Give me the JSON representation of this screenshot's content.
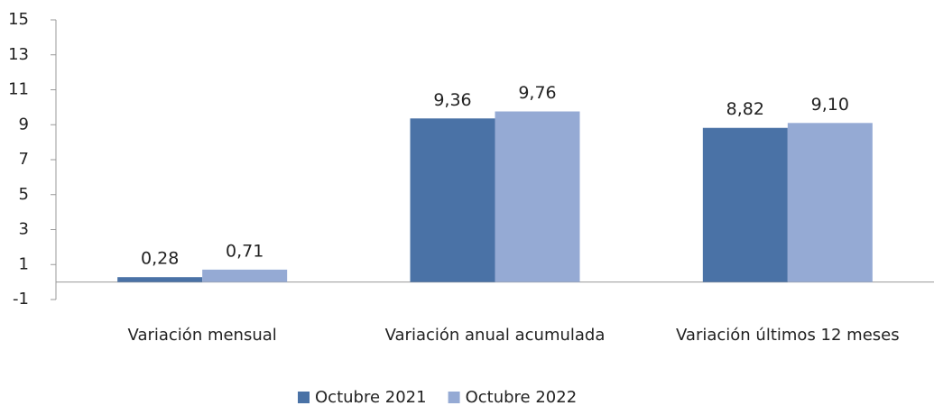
{
  "chart_data": {
    "type": "bar",
    "categories": [
      "Variación mensual",
      "Variación anual acumulada",
      "Variación últimos 12 meses"
    ],
    "series": [
      {
        "name": "Octubre 2021",
        "color": "#4a72a6",
        "values": [
          0.28,
          9.36,
          8.82
        ],
        "value_labels": [
          "0,28",
          "9,36",
          "8,82"
        ]
      },
      {
        "name": "Octubre 2022",
        "color": "#95aad4",
        "values": [
          0.71,
          9.76,
          9.1
        ],
        "value_labels": [
          "0,71",
          "9,76",
          "9,10"
        ]
      }
    ],
    "ylim": [
      -1,
      15
    ],
    "yticks": [
      -1,
      1,
      3,
      5,
      7,
      9,
      11,
      13,
      15
    ],
    "grid": false,
    "legend": "bottom"
  }
}
